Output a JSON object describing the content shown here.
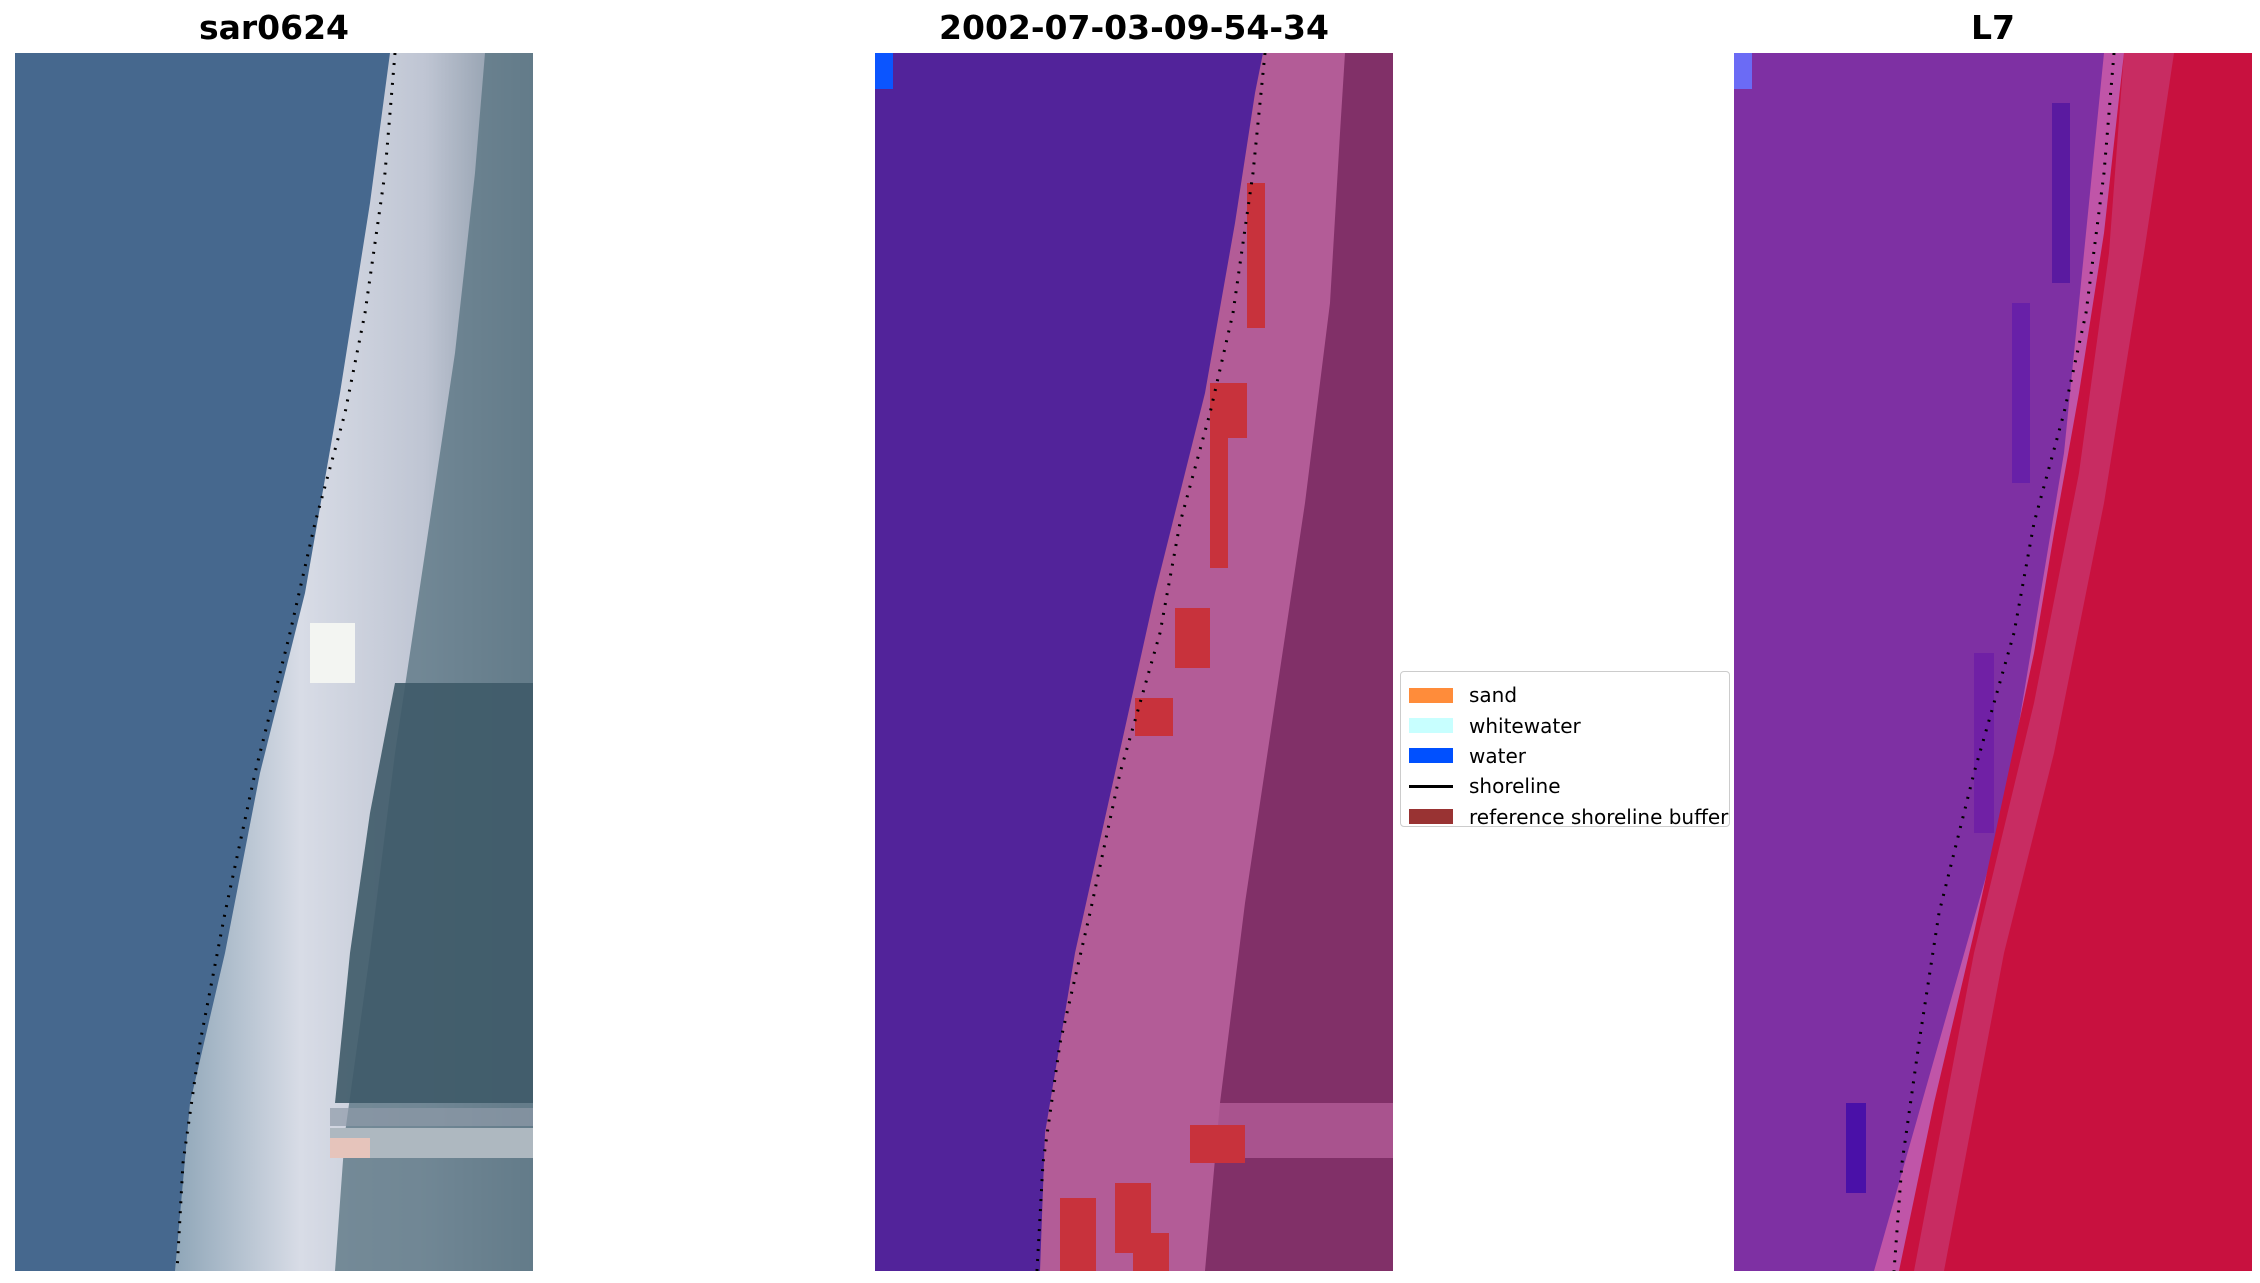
{
  "panels": [
    {
      "title": "sar0624"
    },
    {
      "title": "2002-07-03-09-54-34"
    },
    {
      "title": "L7"
    }
  ],
  "legend": {
    "items": [
      {
        "label": "sand",
        "color": "#ff8c3a",
        "type": "patch"
      },
      {
        "label": "whitewater",
        "color": "#c8ffff",
        "type": "patch"
      },
      {
        "label": "water",
        "color": "#0050ff",
        "type": "patch"
      },
      {
        "label": "shoreline",
        "color": "#000000",
        "type": "line"
      },
      {
        "label": "reference shoreline buffer",
        "color": "#993333",
        "type": "patch"
      }
    ]
  },
  "colors": {
    "rgb_water": "#46688e",
    "rgb_beach": "#c7ccd8",
    "rgb_land": "#3e5a68",
    "class_water": "#52239a",
    "class_land": "#b35c97",
    "class_land_dark": "#78285f",
    "buffer": "#c8323c",
    "water_patch": "#0b55ff",
    "index_water": "#7e30a3",
    "index_land": "#c8113f",
    "shoreline": "#000000"
  }
}
